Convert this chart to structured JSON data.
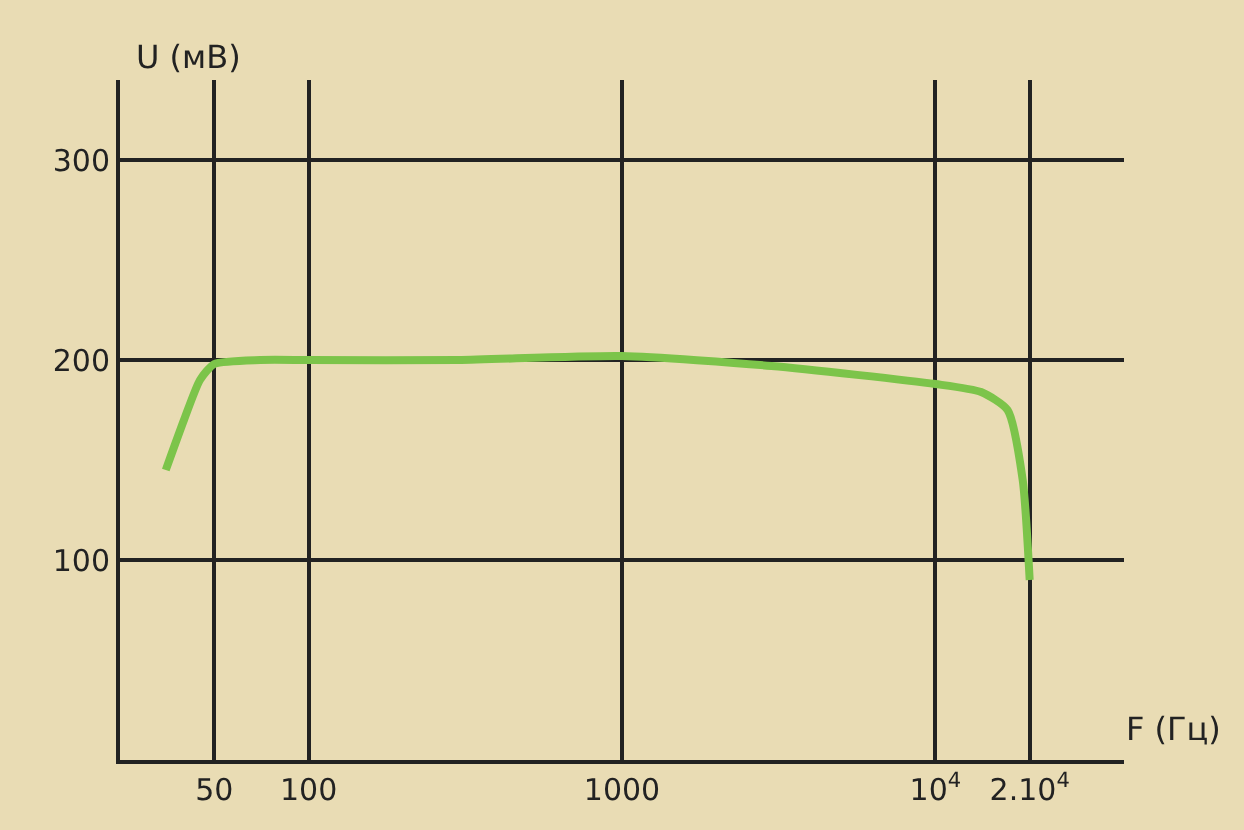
{
  "chart_data": {
    "type": "line",
    "xlabel": "F (Гц)",
    "ylabel": "U (мВ)",
    "log": "x",
    "x": [
      35,
      40,
      45,
      50,
      70,
      100,
      300,
      1000,
      3000,
      10000,
      14000,
      17000,
      19000,
      20000
    ],
    "series": [
      {
        "color": "#7cc44a",
        "values": [
          145,
          170,
          190,
          198,
          200,
          200,
          200,
          202,
          197,
          188,
          184,
          175,
          140,
          90
        ]
      }
    ],
    "xlim": [
      25,
      40000
    ],
    "ylim": [
      0,
      340
    ],
    "xticks": [
      50,
      100,
      1000,
      {
        "value": 10000,
        "label": "10$^{4}$"
      },
      {
        "value": 20000,
        "label": "2.10$^{4}$"
      }
    ],
    "yticks": [
      100,
      200,
      300
    ],
    "grid": true
  }
}
